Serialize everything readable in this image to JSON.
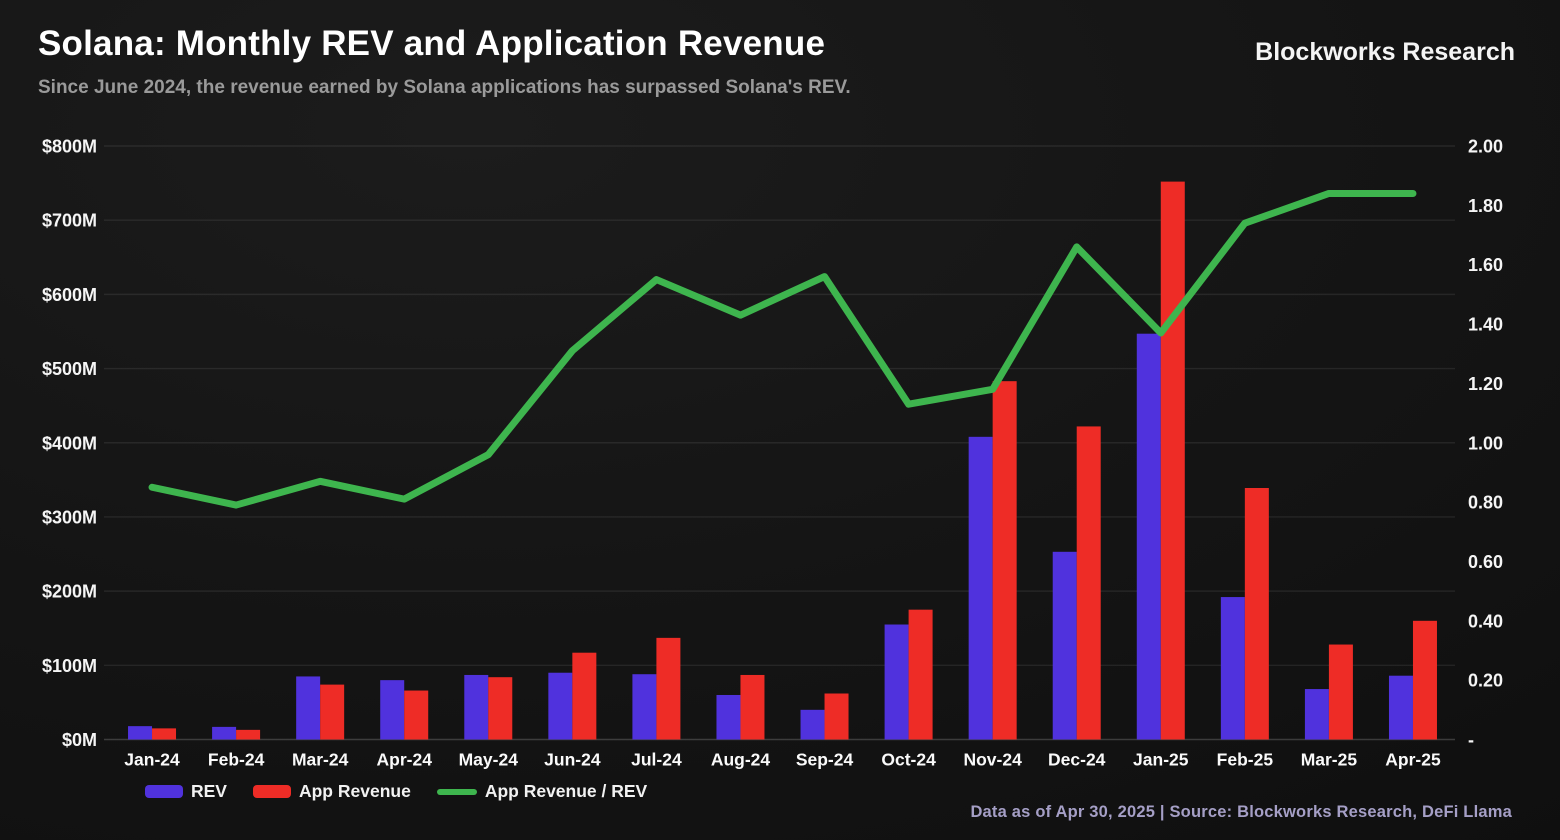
{
  "header": {
    "title": "Solana: Monthly REV and Application Revenue",
    "subtitle": "Since June 2024, the revenue earned by Solana applications has surpassed Solana's REV.",
    "brand": "Blockworks Research"
  },
  "footer": {
    "source_note": "Data as of Apr 30, 2025 | Source: Blockworks Research, DeFi Llama"
  },
  "colors": {
    "background": "#151515",
    "rev_purple": "#5032dd",
    "app_red": "#ee2c26",
    "ratio_green": "#3eb54e",
    "axis_text": "#f5f5f5",
    "subtitle_gray": "#9a9a9a",
    "footer_lavender": "#a59fc6",
    "gridline": "rgba(255,255,255,0.08)"
  },
  "legend": [
    {
      "label": "REV",
      "swatch": "bar",
      "color": "#5032dd"
    },
    {
      "label": "App Revenue",
      "swatch": "bar",
      "color": "#ee2c26"
    },
    {
      "label": "App Revenue / REV",
      "swatch": "line",
      "color": "#3eb54e"
    }
  ],
  "chart_data": {
    "type": "bar",
    "subtype": "grouped-bars-with-line-overlay",
    "categories": [
      "Jan-24",
      "Feb-24",
      "Mar-24",
      "Apr-24",
      "May-24",
      "Jun-24",
      "Jul-24",
      "Aug-24",
      "Sep-24",
      "Oct-24",
      "Nov-24",
      "Dec-24",
      "Jan-25",
      "Feb-25",
      "Mar-25",
      "Apr-25"
    ],
    "series": [
      {
        "name": "REV",
        "type": "bar",
        "axis": "left",
        "color": "#5032dd",
        "values": [
          18,
          17,
          85,
          80,
          87,
          90,
          88,
          60,
          40,
          155,
          408,
          253,
          547,
          192,
          68,
          86
        ]
      },
      {
        "name": "App Revenue",
        "type": "bar",
        "axis": "left",
        "color": "#ee2c26",
        "values": [
          15,
          13,
          74,
          66,
          84,
          117,
          137,
          87,
          62,
          175,
          483,
          422,
          752,
          339,
          128,
          160
        ]
      },
      {
        "name": "App Revenue / REV",
        "type": "line",
        "axis": "right",
        "color": "#3eb54e",
        "values": [
          0.85,
          0.79,
          0.87,
          0.81,
          0.96,
          1.31,
          1.55,
          1.43,
          1.56,
          1.13,
          1.18,
          1.66,
          1.37,
          1.74,
          1.84,
          1.84
        ]
      }
    ],
    "left_axis": {
      "unit": "$M",
      "min": 0,
      "max": 800,
      "step": 100,
      "tick_labels": [
        "$0M",
        "$100M",
        "$200M",
        "$300M",
        "$400M",
        "$500M",
        "$600M",
        "$700M",
        "$800M"
      ]
    },
    "right_axis": {
      "min": 0,
      "max": 2,
      "step": 0.2,
      "tick_labels": [
        "-",
        "0.20",
        "0.40",
        "0.60",
        "0.80",
        "1.00",
        "1.20",
        "1.40",
        "1.60",
        "1.80",
        "2.00"
      ]
    },
    "grid": "horizontal",
    "legend_position": "bottom-left",
    "title": "Solana: Monthly REV and Application Revenue"
  }
}
